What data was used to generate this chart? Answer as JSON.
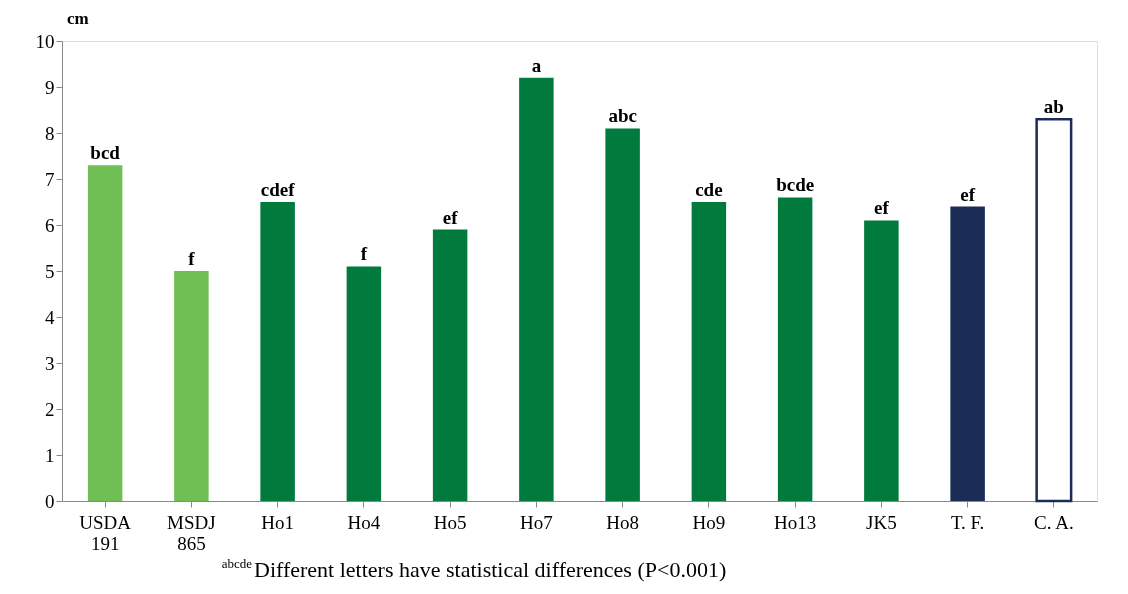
{
  "chart_data": {
    "type": "bar",
    "ylabel": "cm",
    "categories": [
      "USDA\n191",
      "MSDJ\n865",
      "Ho1",
      "Ho4",
      "Ho5",
      "Ho7",
      "Ho8",
      "Ho9",
      "Ho13",
      "JK5",
      "T. F.",
      "C. A."
    ],
    "values": [
      7.3,
      5.0,
      6.5,
      5.1,
      5.9,
      9.2,
      8.1,
      6.5,
      6.6,
      6.1,
      6.4,
      8.3
    ],
    "colors": [
      "#70bf55",
      "#70bf55",
      "#007a3d",
      "#007a3d",
      "#007a3d",
      "#007a3d",
      "#007a3d",
      "#007a3d",
      "#007a3d",
      "#007a3d",
      "#1b2d56",
      "#ffffff"
    ],
    "value_labels": [
      "bcd",
      "f",
      "cdef",
      "f",
      "ef",
      "a",
      "abc",
      "cde",
      "bcde",
      "ef",
      "ef",
      "ab"
    ],
    "ylim": [
      0,
      10
    ],
    "yticks": [
      0,
      1,
      2,
      3,
      4,
      5,
      6,
      7,
      8,
      9,
      10
    ],
    "grid": false,
    "annotations": [
      "$^{abcde}$Different letters have statistical differences (P<0.001)"
    ]
  }
}
